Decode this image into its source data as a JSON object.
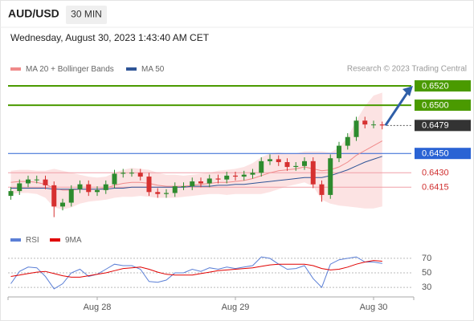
{
  "header": {
    "symbol": "AUD/USD",
    "timeframe": "30 MIN",
    "timestamp": "Wednesday, August 30, 2023 1:43:40 AM CET",
    "credit": "Research © 2023 Trading Central"
  },
  "chart_data": [
    {
      "type": "candlestick",
      "categories": [
        null,
        null,
        null,
        null,
        null,
        null,
        null,
        null,
        null,
        null,
        "Aug 28",
        null,
        null,
        null,
        null,
        null,
        null,
        null,
        null,
        null,
        null,
        null,
        null,
        null,
        null,
        null,
        "Aug 29",
        null,
        null,
        null,
        null,
        null,
        null,
        null,
        null,
        null,
        null,
        null,
        null,
        null,
        null,
        null,
        "Aug 30",
        null
      ],
      "open": [
        0.6406,
        0.6411,
        0.6419,
        0.6423,
        0.6423,
        0.6417,
        0.6395,
        0.6399,
        0.6413,
        0.6418,
        0.641,
        0.6412,
        0.6418,
        0.6429,
        0.643,
        0.643,
        0.6426,
        0.641,
        0.6408,
        0.6409,
        0.6416,
        0.6416,
        0.6421,
        0.6419,
        0.6424,
        0.6423,
        0.6427,
        0.6426,
        0.6428,
        0.643,
        0.6442,
        0.6444,
        0.6441,
        0.6436,
        0.6437,
        0.6442,
        0.6418,
        0.6407,
        0.6445,
        0.6458,
        0.6467,
        0.6484,
        0.648,
        0.648
      ],
      "high": [
        0.6415,
        0.6423,
        0.6427,
        0.6427,
        0.6427,
        0.6421,
        0.6403,
        0.6417,
        0.6422,
        0.6422,
        0.6416,
        0.6422,
        0.6433,
        0.6434,
        0.6434,
        0.6434,
        0.643,
        0.6414,
        0.6413,
        0.642,
        0.642,
        0.6425,
        0.6425,
        0.6428,
        0.6428,
        0.6431,
        0.6431,
        0.6432,
        0.6434,
        0.6446,
        0.6449,
        0.6448,
        0.6445,
        0.6441,
        0.6446,
        0.6446,
        0.6422,
        0.6449,
        0.6462,
        0.6471,
        0.6488,
        0.6488,
        0.6484,
        0.6483
      ],
      "low": [
        0.6402,
        0.6407,
        0.6415,
        0.6419,
        0.6413,
        0.6384,
        0.6391,
        0.6395,
        0.6409,
        0.6406,
        0.6406,
        0.6408,
        0.6414,
        0.6425,
        0.6426,
        0.6422,
        0.6406,
        0.6404,
        0.6404,
        0.6405,
        0.6412,
        0.6412,
        0.6415,
        0.6415,
        0.6419,
        0.6419,
        0.6422,
        0.6422,
        0.6424,
        0.6426,
        0.6438,
        0.6437,
        0.6432,
        0.6432,
        0.6433,
        0.6414,
        0.64,
        0.6403,
        0.6441,
        0.6454,
        0.6463,
        0.6476,
        0.6476,
        0.6475
      ],
      "close": [
        0.6411,
        0.6419,
        0.6423,
        0.6423,
        0.6417,
        0.6395,
        0.6399,
        0.6413,
        0.6418,
        0.641,
        0.6412,
        0.6418,
        0.6429,
        0.643,
        0.643,
        0.6426,
        0.641,
        0.6408,
        0.6409,
        0.6416,
        0.6416,
        0.6421,
        0.6419,
        0.6424,
        0.6423,
        0.6427,
        0.6426,
        0.6428,
        0.643,
        0.6442,
        0.6444,
        0.6441,
        0.6436,
        0.6437,
        0.6442,
        0.6418,
        0.6407,
        0.6445,
        0.6458,
        0.6467,
        0.6484,
        0.648,
        0.648,
        0.6479
      ],
      "up_color": "#2e8b2e",
      "down_color": "#d63030",
      "series": [
        {
          "name": "MA 20 + Bollinger Bands",
          "color": "#f08a8a",
          "values": [
            0.642,
            0.6421,
            0.6421,
            0.642,
            0.6418,
            0.6414,
            0.6412,
            0.6412,
            0.6413,
            0.6413,
            0.6413,
            0.6414,
            0.6417,
            0.6419,
            0.642,
            0.642,
            0.6419,
            0.6417,
            0.6416,
            0.6416,
            0.6416,
            0.6417,
            0.6418,
            0.6419,
            0.642,
            0.642,
            0.6421,
            0.6422,
            0.6424,
            0.6427,
            0.643,
            0.6432,
            0.6433,
            0.6434,
            0.6436,
            0.6434,
            0.6432,
            0.6433,
            0.6436,
            0.6441,
            0.6448,
            0.6453,
            0.6458,
            0.6463
          ]
        },
        {
          "name": "MA 50",
          "color": "#2f5597",
          "values": [
            0.6414,
            0.6414,
            0.6414,
            0.6414,
            0.6414,
            0.6413,
            0.6413,
            0.6413,
            0.6413,
            0.6413,
            0.6413,
            0.6413,
            0.6414,
            0.6414,
            0.6415,
            0.6415,
            0.6415,
            0.6415,
            0.6415,
            0.6415,
            0.6415,
            0.6416,
            0.6416,
            0.6416,
            0.6417,
            0.6417,
            0.6418,
            0.6418,
            0.6419,
            0.642,
            0.6421,
            0.6422,
            0.6423,
            0.6424,
            0.6425,
            0.6425,
            0.6425,
            0.6427,
            0.643,
            0.6433,
            0.6437,
            0.6441,
            0.6444,
            0.6447
          ]
        }
      ],
      "bands": {
        "color": "#fbd9d9",
        "upper": [
          0.6432,
          0.6433,
          0.6433,
          0.6432,
          0.6432,
          0.6434,
          0.6432,
          0.643,
          0.6428,
          0.6426,
          0.6425,
          0.6426,
          0.643,
          0.6433,
          0.6435,
          0.6434,
          0.6433,
          0.643,
          0.6428,
          0.6428,
          0.6427,
          0.6428,
          0.6429,
          0.643,
          0.6432,
          0.6433,
          0.6434,
          0.6436,
          0.644,
          0.6446,
          0.645,
          0.6451,
          0.645,
          0.645,
          0.6452,
          0.6452,
          0.6452,
          0.6451,
          0.6456,
          0.6467,
          0.6484,
          0.6499,
          0.651,
          0.6513
        ],
        "lower": [
          0.6408,
          0.6409,
          0.6409,
          0.6408,
          0.6404,
          0.6394,
          0.6392,
          0.6394,
          0.6398,
          0.64,
          0.6401,
          0.6402,
          0.6404,
          0.6405,
          0.6405,
          0.6406,
          0.6405,
          0.6404,
          0.6404,
          0.6404,
          0.6405,
          0.6406,
          0.6407,
          0.6408,
          0.6408,
          0.6407,
          0.6408,
          0.6408,
          0.6408,
          0.6408,
          0.641,
          0.6413,
          0.6416,
          0.6418,
          0.642,
          0.6416,
          0.6402,
          0.6398,
          0.6396,
          0.6395,
          0.6394,
          0.6393,
          0.6393,
          0.6395
        ]
      },
      "levels": [
        {
          "value": 0.652,
          "label": "0.6520",
          "color": "#4a9a00",
          "box": true
        },
        {
          "value": 0.65,
          "label": "0.6500",
          "color": "#4a9a00",
          "box": true
        },
        {
          "value": 0.6479,
          "color": "#333333",
          "box": true
        },
        {
          "value": 0.645,
          "label": "0.6450",
          "color": "#2a63d4",
          "box": true
        },
        {
          "value": 0.643,
          "label": "0.6430",
          "color": "#d03030",
          "box": false
        },
        {
          "value": 0.6415,
          "color": "#d03030",
          "box": false
        }
      ],
      "ylim": [
        0.6372,
        0.653
      ]
    },
    {
      "type": "line",
      "series": [
        {
          "name": "RSI",
          "color": "#5b7fd6",
          "values": [
            35,
            52,
            58,
            57,
            45,
            28,
            35,
            50,
            55,
            45,
            48,
            55,
            62,
            60,
            60,
            55,
            38,
            37,
            40,
            50,
            50,
            55,
            52,
            57,
            55,
            58,
            56,
            58,
            60,
            72,
            70,
            62,
            55,
            56,
            60,
            42,
            30,
            62,
            68,
            70,
            72,
            65,
            65,
            63
          ]
        },
        {
          "name": "9MA",
          "color": "#e00000",
          "values": [
            45,
            47,
            49,
            51,
            52,
            49,
            46,
            44,
            44,
            46,
            48,
            50,
            53,
            56,
            57,
            58,
            55,
            51,
            48,
            47,
            47,
            47,
            49,
            51,
            53,
            54,
            55,
            56,
            57,
            59,
            61,
            62,
            62,
            62,
            62,
            60,
            56,
            54,
            55,
            58,
            62,
            65,
            67,
            66
          ]
        }
      ],
      "ylim": [
        19,
        81
      ],
      "yticks": [
        30,
        50,
        70
      ]
    }
  ]
}
